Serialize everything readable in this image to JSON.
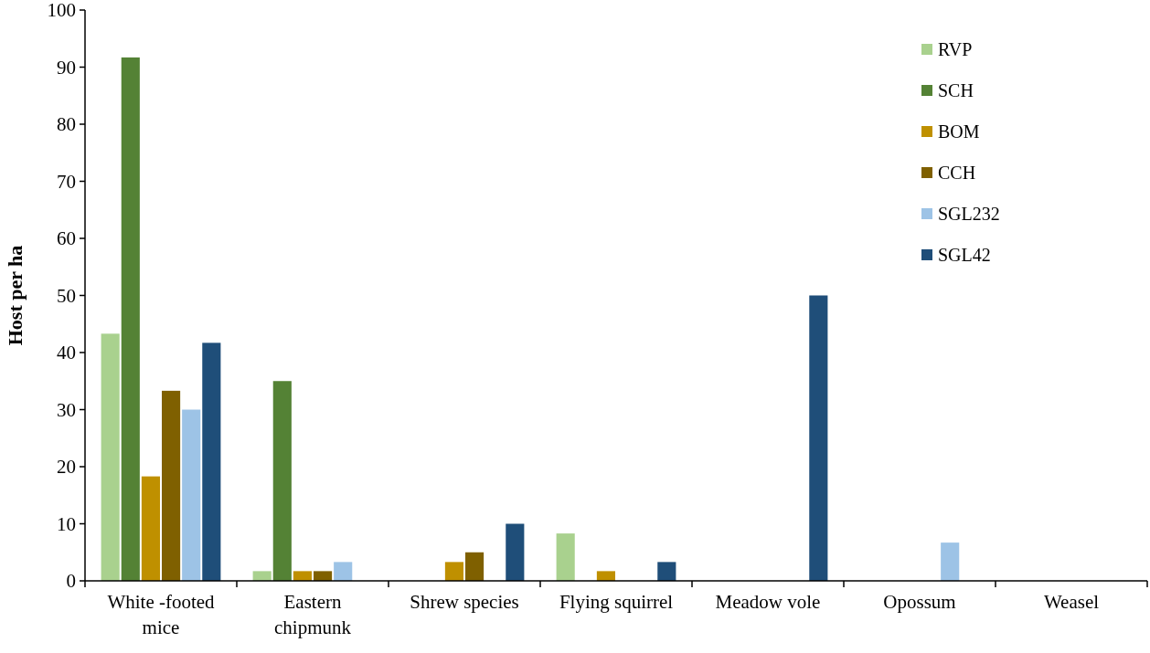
{
  "chart_data": {
    "type": "bar",
    "ylabel": "Host per ha",
    "categories": [
      "White -footed mice",
      "Eastern chipmunk",
      "Shrew species",
      "Flying squirrel",
      "Meadow vole",
      "Opossum",
      "Weasel"
    ],
    "series": [
      {
        "name": "RVP",
        "color": "#a9d18e",
        "values": [
          43.3,
          1.7,
          0,
          8.3,
          0,
          0,
          0
        ]
      },
      {
        "name": "SCH",
        "color": "#548235",
        "values": [
          91.7,
          35,
          0,
          0,
          0,
          0,
          0
        ]
      },
      {
        "name": "BOM",
        "color": "#bf9000",
        "values": [
          18.3,
          1.7,
          3.3,
          1.7,
          0,
          0,
          0
        ]
      },
      {
        "name": "CCH",
        "color": "#7f6000",
        "values": [
          33.3,
          1.7,
          5,
          0,
          0,
          0,
          null
        ]
      },
      {
        "name": "SGL232",
        "color": "#9dc3e6",
        "values": [
          30,
          3.3,
          0,
          0,
          0,
          6.7,
          0
        ]
      },
      {
        "name": "SGL42",
        "color": "#1f4e79",
        "values": [
          41.7,
          0,
          10,
          3.3,
          50,
          0,
          0
        ]
      }
    ],
    "ylim": [
      0,
      100
    ],
    "yticks": [
      0,
      10,
      20,
      30,
      40,
      50,
      60,
      70,
      80,
      90,
      100
    ],
    "legend": "top right"
  }
}
